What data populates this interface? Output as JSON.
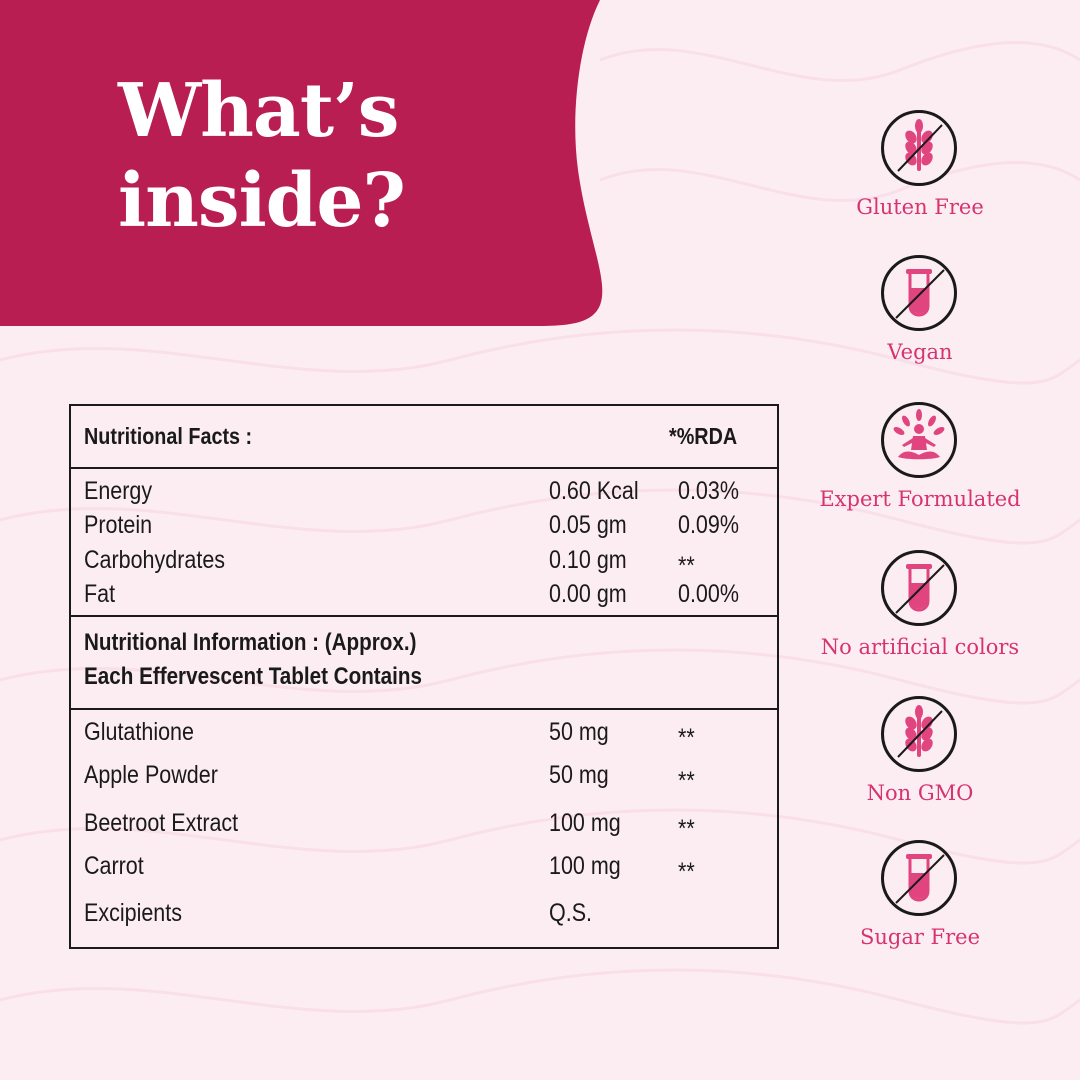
{
  "colors": {
    "brand": "#b91e52",
    "accent": "#e0457f",
    "background": "#fcedf3",
    "text": "#1a1a1a"
  },
  "headline": {
    "line1": "What’s",
    "line2": "inside?"
  },
  "table": {
    "header": {
      "title": "Nutritional Facts :",
      "rda_label": "*%RDA"
    },
    "macros": [
      {
        "name": "Energy",
        "amount": "0.60 Kcal",
        "rda": "0.03%"
      },
      {
        "name": "Protein",
        "amount": "0.05 gm",
        "rda": "0.09%"
      },
      {
        "name": "Carbohydrates",
        "amount": "0.10 gm",
        "rda": "**"
      },
      {
        "name": "Fat",
        "amount": "0.00 gm",
        "rda": "0.00%"
      }
    ],
    "info": {
      "line1": "Nutritional Information : (Approx.)",
      "line2": "Each Effervescent Tablet Contains"
    },
    "ingredients": [
      {
        "name": "Glutathione",
        "amount": "50 mg",
        "rda": "**"
      },
      {
        "name": "Apple Powder",
        "amount": "50 mg",
        "rda": "**"
      },
      {
        "name": "Beetroot Extract",
        "amount": "100 mg",
        "rda": "**"
      },
      {
        "name": "Carrot",
        "amount": "100 mg",
        "rda": "**"
      },
      {
        "name": "Excipients",
        "amount": "Q.S.",
        "rda": ""
      }
    ]
  },
  "badges": [
    {
      "label": "Gluten Free",
      "icon": "wheat-icon"
    },
    {
      "label": "Vegan",
      "icon": "test-tube-icon"
    },
    {
      "label": "Expert Formulated",
      "icon": "meditation-icon"
    },
    {
      "label": "No artificial colors",
      "icon": "test-tube-icon"
    },
    {
      "label": "Non GMO",
      "icon": "wheat-icon"
    },
    {
      "label": "Sugar Free",
      "icon": "test-tube-icon"
    }
  ]
}
